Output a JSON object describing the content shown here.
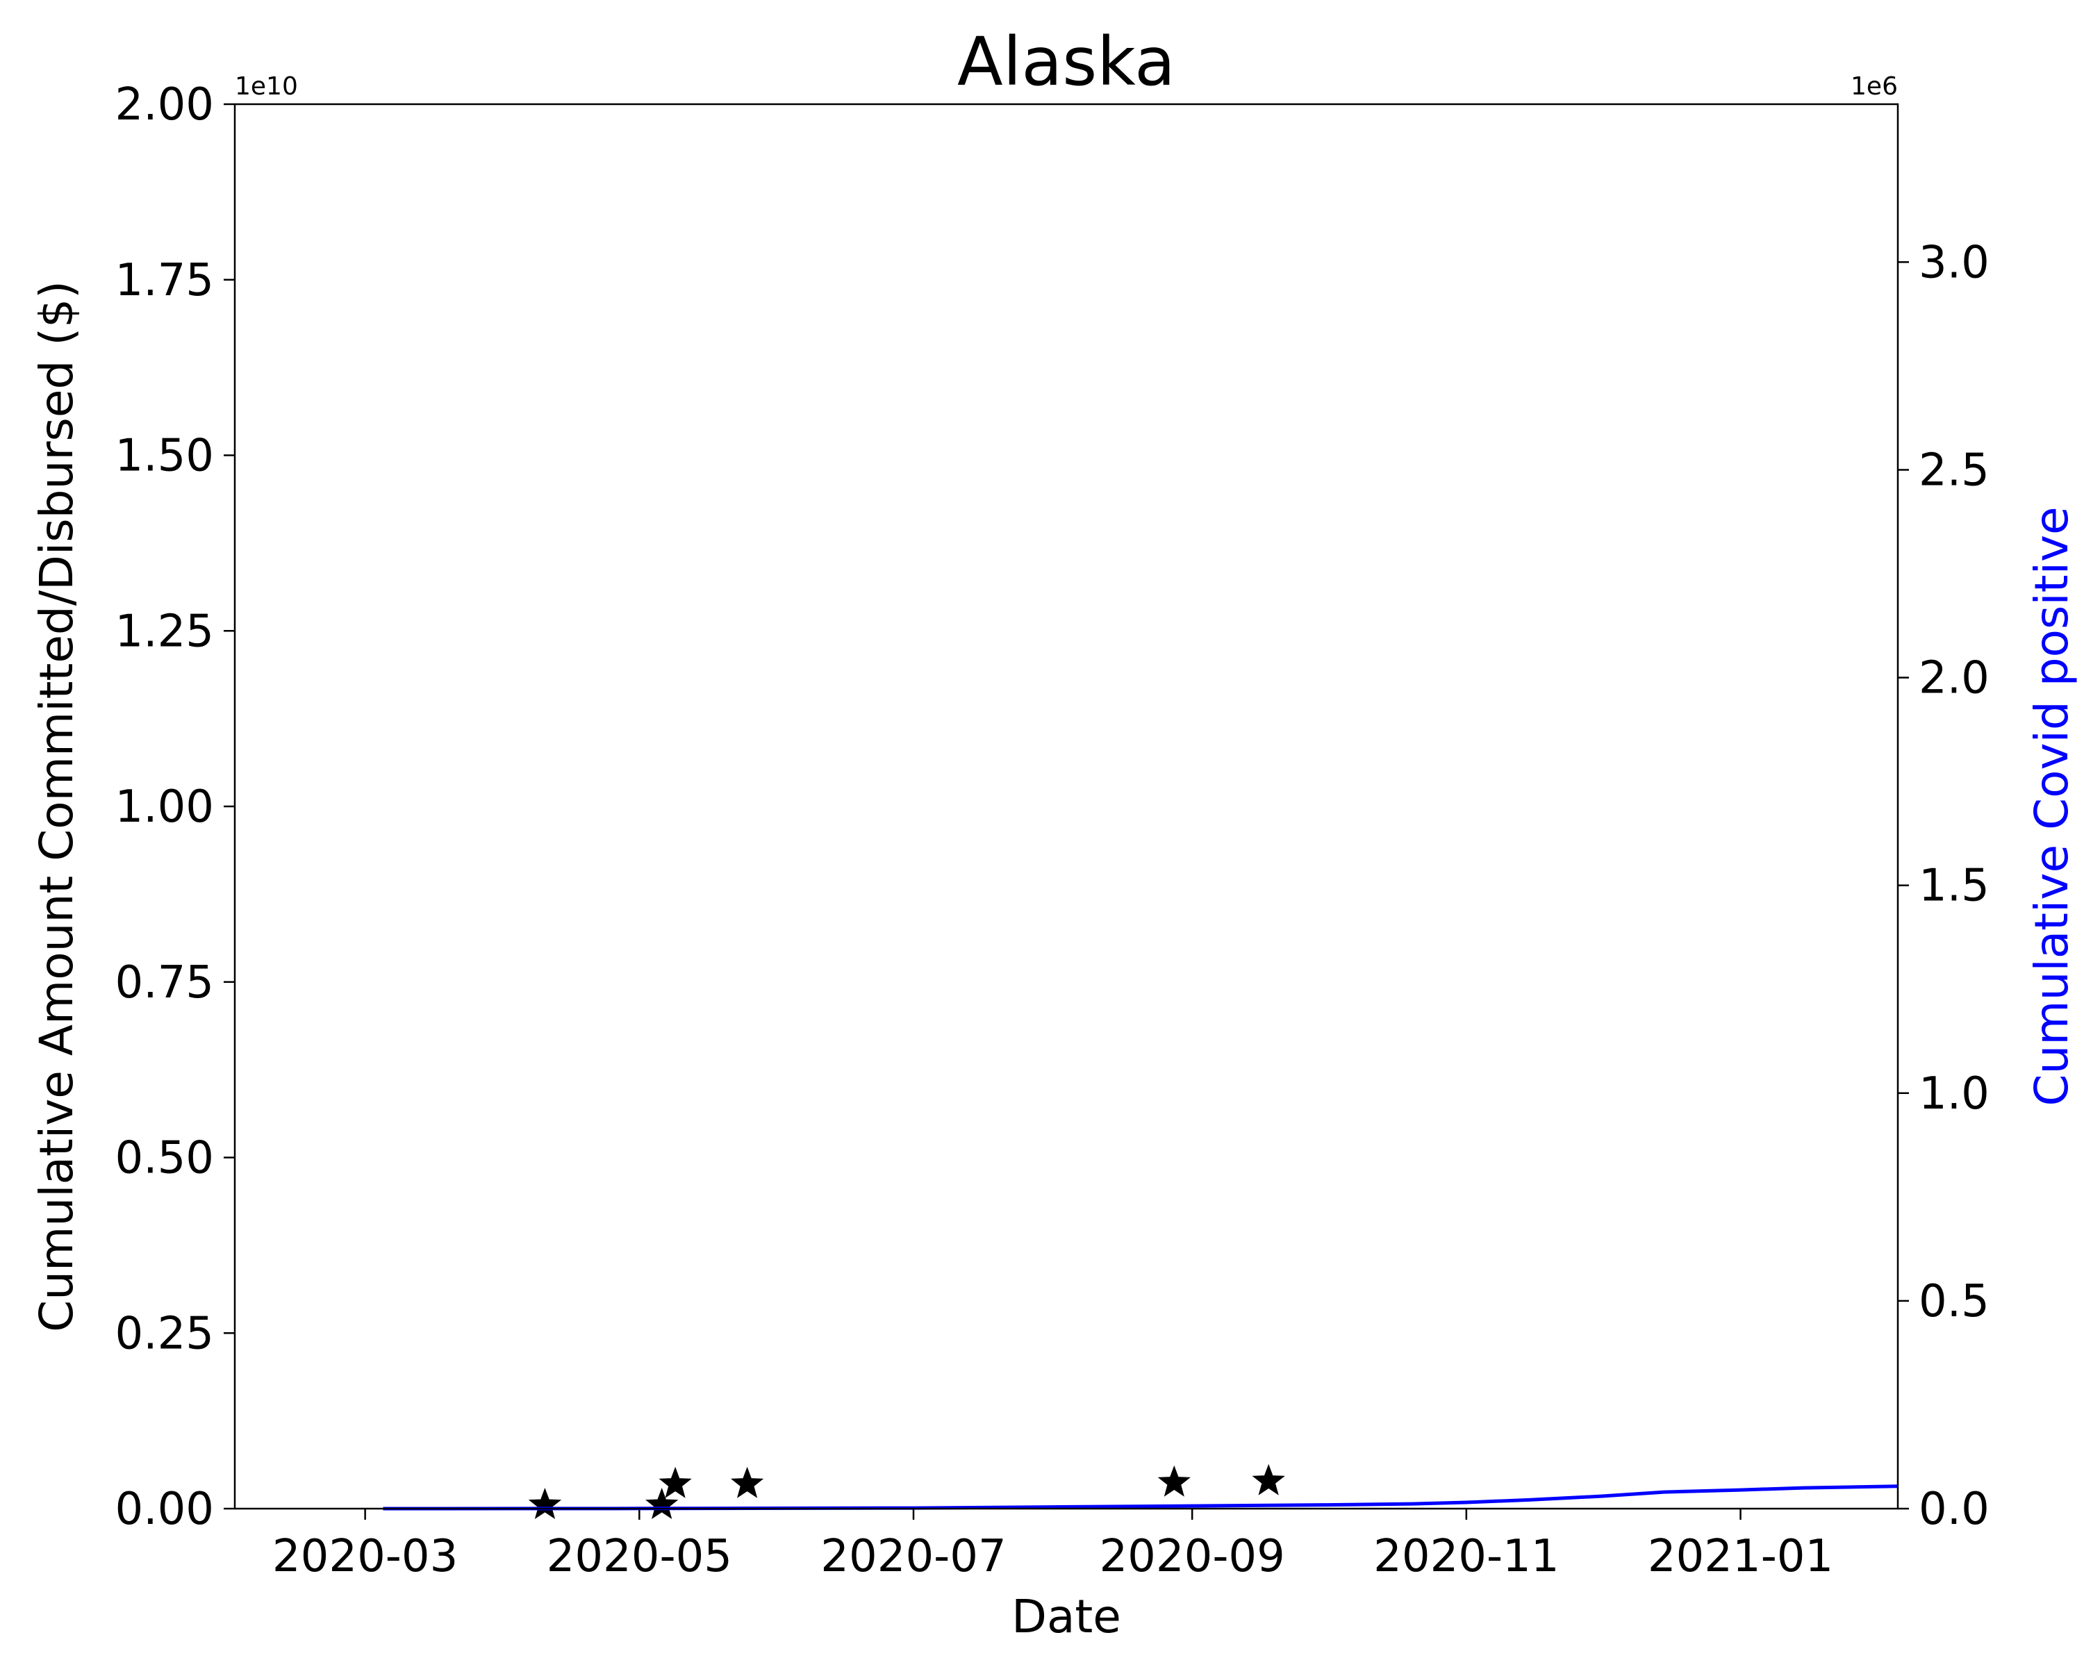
{
  "chart_data": {
    "type": "line",
    "title": "Alaska",
    "xlabel": "Date",
    "ylabel": "Cumulative Amount Committed/Disbursed ($)",
    "y2label": "Cumulative Covid positive",
    "y_offset_label": "1e10",
    "y2_offset_label": "1e6",
    "xlim": [
      "2020-02-01",
      "2021-02-05"
    ],
    "ylim": [
      0,
      2.0
    ],
    "y2lim": [
      0,
      3.38
    ],
    "x_ticks": [
      "2020-03",
      "2020-05",
      "2020-07",
      "2020-09",
      "2020-11",
      "2021-01"
    ],
    "y_ticks": [
      "0.00",
      "0.25",
      "0.50",
      "0.75",
      "1.00",
      "1.25",
      "1.50",
      "1.75",
      "2.00"
    ],
    "y2_ticks": [
      "0.0",
      "0.5",
      "1.0",
      "1.5",
      "2.0",
      "2.5",
      "3.0"
    ],
    "grid": false,
    "colors": {
      "covid_line": "#0000ff",
      "markers": "#000000"
    },
    "series": [
      {
        "axis": "left",
        "mark": "star",
        "points": [
          {
            "x": "2020-04-10",
            "y": 0.005
          },
          {
            "x": "2020-05-06",
            "y": 0.005
          },
          {
            "x": "2020-05-09",
            "y": 0.035
          },
          {
            "x": "2020-05-25",
            "y": 0.035
          },
          {
            "x": "2020-08-28",
            "y": 0.037
          },
          {
            "x": "2020-09-18",
            "y": 0.039
          }
        ]
      },
      {
        "axis": "right",
        "mark": "line",
        "points": [
          {
            "x": "2020-03-05",
            "y": 0.0
          },
          {
            "x": "2020-05-01",
            "y": 0.0004
          },
          {
            "x": "2020-07-01",
            "y": 0.0015
          },
          {
            "x": "2020-08-01",
            "y": 0.004
          },
          {
            "x": "2020-09-01",
            "y": 0.0065
          },
          {
            "x": "2020-10-01",
            "y": 0.009
          },
          {
            "x": "2020-10-20",
            "y": 0.0115
          },
          {
            "x": "2020-11-01",
            "y": 0.015
          },
          {
            "x": "2020-11-15",
            "y": 0.021
          },
          {
            "x": "2020-12-01",
            "y": 0.03
          },
          {
            "x": "2020-12-15",
            "y": 0.04
          },
          {
            "x": "2021-01-01",
            "y": 0.045
          },
          {
            "x": "2021-01-15",
            "y": 0.05
          },
          {
            "x": "2021-02-05",
            "y": 0.054
          }
        ]
      }
    ]
  }
}
